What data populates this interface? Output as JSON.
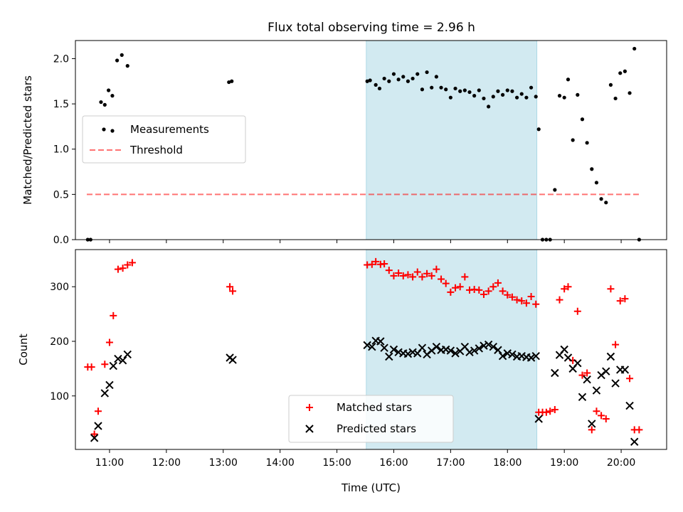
{
  "title": "Flux total observing time = 2.96 h",
  "colors": {
    "shade": "#add8e6",
    "threshold": "#ff0000",
    "matched": "#ff0000",
    "predicted": "#000000",
    "measurement": "#000000"
  },
  "chart_data": [
    {
      "type": "scatter",
      "title": "Flux total observing time = 2.96 h",
      "xlabel": "",
      "ylabel": "Matched/Predicted stars",
      "xlim": [
        "10:24",
        "20:48"
      ],
      "ylim": [
        0,
        2.2
      ],
      "yticks": [
        0.0,
        0.5,
        1.0,
        1.5,
        2.0
      ],
      "ytick_labels": [
        "0.0",
        "0.5",
        "1.0",
        "1.5",
        "2.0"
      ],
      "shaded_span": [
        "15:31",
        "18:31"
      ],
      "legend": {
        "position": "center-left",
        "entries": [
          "Measurements",
          "Threshold"
        ]
      },
      "threshold": {
        "name": "Threshold",
        "y": 0.5,
        "x_range": [
          "10:36",
          "20:20"
        ],
        "style": "dashed"
      },
      "series": [
        {
          "name": "Measurements",
          "marker": "dot",
          "points": [
            [
              "10:37",
              0.0
            ],
            [
              "10:40",
              0.0
            ],
            [
              "10:51",
              1.52
            ],
            [
              "10:55",
              1.49
            ],
            [
              "10:59",
              1.65
            ],
            [
              "11:03",
              1.59
            ],
            [
              "11:08",
              1.98
            ],
            [
              "11:13",
              2.04
            ],
            [
              "11:19",
              1.92
            ],
            [
              "13:06",
              1.74
            ],
            [
              "13:09",
              1.75
            ],
            [
              "15:32",
              1.75
            ],
            [
              "15:35",
              1.76
            ],
            [
              "15:41",
              1.71
            ],
            [
              "15:45",
              1.67
            ],
            [
              "15:50",
              1.78
            ],
            [
              "15:55",
              1.75
            ],
            [
              "16:00",
              1.83
            ],
            [
              "16:05",
              1.77
            ],
            [
              "16:10",
              1.8
            ],
            [
              "16:15",
              1.75
            ],
            [
              "16:20",
              1.78
            ],
            [
              "16:25",
              1.83
            ],
            [
              "16:30",
              1.66
            ],
            [
              "16:35",
              1.85
            ],
            [
              "16:40",
              1.68
            ],
            [
              "16:45",
              1.8
            ],
            [
              "16:50",
              1.68
            ],
            [
              "16:55",
              1.66
            ],
            [
              "17:00",
              1.57
            ],
            [
              "17:05",
              1.67
            ],
            [
              "17:10",
              1.64
            ],
            [
              "17:15",
              1.65
            ],
            [
              "17:20",
              1.63
            ],
            [
              "17:25",
              1.59
            ],
            [
              "17:30",
              1.65
            ],
            [
              "17:35",
              1.56
            ],
            [
              "17:40",
              1.47
            ],
            [
              "17:45",
              1.58
            ],
            [
              "17:50",
              1.64
            ],
            [
              "17:55",
              1.6
            ],
            [
              "18:00",
              1.65
            ],
            [
              "18:05",
              1.64
            ],
            [
              "18:10",
              1.57
            ],
            [
              "18:15",
              1.61
            ],
            [
              "18:20",
              1.57
            ],
            [
              "18:25",
              1.68
            ],
            [
              "18:30",
              1.58
            ],
            [
              "18:33",
              1.22
            ],
            [
              "18:37",
              0.0
            ],
            [
              "18:41",
              0.0
            ],
            [
              "18:45",
              0.0
            ],
            [
              "18:50",
              0.55
            ],
            [
              "18:55",
              1.59
            ],
            [
              "19:00",
              1.57
            ],
            [
              "19:04",
              1.77
            ],
            [
              "19:09",
              1.1
            ],
            [
              "19:14",
              1.6
            ],
            [
              "19:19",
              1.33
            ],
            [
              "19:24",
              1.07
            ],
            [
              "19:29",
              0.78
            ],
            [
              "19:34",
              0.63
            ],
            [
              "19:39",
              0.45
            ],
            [
              "19:44",
              0.41
            ],
            [
              "19:49",
              1.71
            ],
            [
              "19:54",
              1.56
            ],
            [
              "19:59",
              1.84
            ],
            [
              "20:04",
              1.86
            ],
            [
              "20:09",
              1.62
            ],
            [
              "20:14",
              2.11
            ],
            [
              "20:19",
              0.0
            ]
          ]
        }
      ]
    },
    {
      "type": "scatter",
      "xlabel": "Time (UTC)",
      "ylabel": "Count",
      "xlim": [
        "10:24",
        "20:48"
      ],
      "ylim": [
        2,
        368
      ],
      "yticks": [
        100,
        200,
        300
      ],
      "ytick_labels": [
        "100",
        "200",
        "300"
      ],
      "xticks": [
        "11:00",
        "12:00",
        "13:00",
        "14:00",
        "15:00",
        "16:00",
        "17:00",
        "18:00",
        "19:00",
        "20:00"
      ],
      "xtick_labels": [
        "11:00",
        "12:00",
        "13:00",
        "14:00",
        "15:00",
        "16:00",
        "17:00",
        "18:00",
        "19:00",
        "20:00"
      ],
      "shaded_span": [
        "15:31",
        "18:31"
      ],
      "legend": {
        "position": "bottom-center",
        "entries": [
          "Matched stars",
          "Predicted stars"
        ]
      },
      "series": [
        {
          "name": "Matched stars",
          "marker": "plus",
          "points": [
            [
              "10:37",
              153
            ],
            [
              "10:41",
              153
            ],
            [
              "10:44",
              30
            ],
            [
              "10:48",
              72
            ],
            [
              "10:55",
              158
            ],
            [
              "11:00",
              198
            ],
            [
              "11:04",
              247
            ],
            [
              "11:09",
              332
            ],
            [
              "11:14",
              334
            ],
            [
              "11:19",
              340
            ],
            [
              "11:24",
              344
            ],
            [
              "13:07",
              300
            ],
            [
              "13:10",
              292
            ],
            [
              "15:32",
              340
            ],
            [
              "15:37",
              341
            ],
            [
              "15:41",
              346
            ],
            [
              "15:46",
              341
            ],
            [
              "15:50",
              342
            ],
            [
              "15:55",
              330
            ],
            [
              "16:00",
              320
            ],
            [
              "16:05",
              325
            ],
            [
              "16:10",
              320
            ],
            [
              "16:15",
              322
            ],
            [
              "16:20",
              318
            ],
            [
              "16:25",
              327
            ],
            [
              "16:30",
              318
            ],
            [
              "16:35",
              324
            ],
            [
              "16:40",
              320
            ],
            [
              "16:45",
              332
            ],
            [
              "16:50",
              314
            ],
            [
              "16:55",
              306
            ],
            [
              "17:00",
              290
            ],
            [
              "17:05",
              298
            ],
            [
              "17:10",
              300
            ],
            [
              "17:15",
              318
            ],
            [
              "17:20",
              294
            ],
            [
              "17:25",
              295
            ],
            [
              "17:30",
              294
            ],
            [
              "17:35",
              286
            ],
            [
              "17:40",
              292
            ],
            [
              "17:45",
              300
            ],
            [
              "17:50",
              307
            ],
            [
              "17:55",
              292
            ],
            [
              "18:00",
              285
            ],
            [
              "18:05",
              281
            ],
            [
              "18:10",
              276
            ],
            [
              "18:15",
              274
            ],
            [
              "18:20",
              270
            ],
            [
              "18:25",
              282
            ],
            [
              "18:30",
              268
            ],
            [
              "18:33",
              70
            ],
            [
              "18:37",
              70
            ],
            [
              "18:41",
              70
            ],
            [
              "18:45",
              72
            ],
            [
              "18:50",
              75
            ],
            [
              "18:55",
              276
            ],
            [
              "19:00",
              296
            ],
            [
              "19:04",
              300
            ],
            [
              "19:09",
              165
            ],
            [
              "19:14",
              255
            ],
            [
              "19:19",
              138
            ],
            [
              "19:24",
              142
            ],
            [
              "19:29",
              38
            ],
            [
              "19:34",
              72
            ],
            [
              "19:39",
              64
            ],
            [
              "19:44",
              58
            ],
            [
              "19:49",
              296
            ],
            [
              "19:54",
              194
            ],
            [
              "19:59",
              274
            ],
            [
              "20:04",
              278
            ],
            [
              "20:09",
              132
            ],
            [
              "20:14",
              38
            ],
            [
              "20:19",
              38
            ]
          ]
        },
        {
          "name": "Predicted stars",
          "marker": "x",
          "points": [
            [
              "10:44",
              23
            ],
            [
              "10:48",
              45
            ],
            [
              "10:55",
              105
            ],
            [
              "11:00",
              120
            ],
            [
              "11:04",
              155
            ],
            [
              "11:09",
              168
            ],
            [
              "11:14",
              165
            ],
            [
              "11:19",
              176
            ],
            [
              "13:07",
              170
            ],
            [
              "13:10",
              166
            ],
            [
              "15:32",
              193
            ],
            [
              "15:37",
              190
            ],
            [
              "15:41",
              201
            ],
            [
              "15:46",
              200
            ],
            [
              "15:50",
              188
            ],
            [
              "15:55",
              172
            ],
            [
              "16:00",
              185
            ],
            [
              "16:05",
              180
            ],
            [
              "16:10",
              178
            ],
            [
              "16:15",
              177
            ],
            [
              "16:20",
              180
            ],
            [
              "16:25",
              178
            ],
            [
              "16:30",
              188
            ],
            [
              "16:35",
              176
            ],
            [
              "16:40",
              183
            ],
            [
              "16:45",
              190
            ],
            [
              "16:50",
              184
            ],
            [
              "16:55",
              185
            ],
            [
              "17:00",
              183
            ],
            [
              "17:05",
              178
            ],
            [
              "17:10",
              182
            ],
            [
              "17:15",
              190
            ],
            [
              "17:20",
              180
            ],
            [
              "17:25",
              183
            ],
            [
              "17:30",
              187
            ],
            [
              "17:35",
              192
            ],
            [
              "17:40",
              194
            ],
            [
              "17:45",
              190
            ],
            [
              "17:50",
              184
            ],
            [
              "17:55",
              173
            ],
            [
              "18:00",
              178
            ],
            [
              "18:05",
              176
            ],
            [
              "18:10",
              172
            ],
            [
              "18:15",
              173
            ],
            [
              "18:20",
              171
            ],
            [
              "18:25",
              170
            ],
            [
              "18:30",
              173
            ],
            [
              "18:33",
              58
            ],
            [
              "18:50",
              142
            ],
            [
              "18:55",
              175
            ],
            [
              "19:00",
              185
            ],
            [
              "19:04",
              170
            ],
            [
              "19:09",
              150
            ],
            [
              "19:14",
              160
            ],
            [
              "19:19",
              98
            ],
            [
              "19:24",
              130
            ],
            [
              "19:29",
              49
            ],
            [
              "19:34",
              110
            ],
            [
              "19:39",
              138
            ],
            [
              "19:44",
              145
            ],
            [
              "19:49",
              172
            ],
            [
              "19:54",
              123
            ],
            [
              "19:59",
              148
            ],
            [
              "20:04",
              148
            ],
            [
              "20:09",
              82
            ],
            [
              "20:14",
              16
            ]
          ]
        }
      ]
    }
  ]
}
